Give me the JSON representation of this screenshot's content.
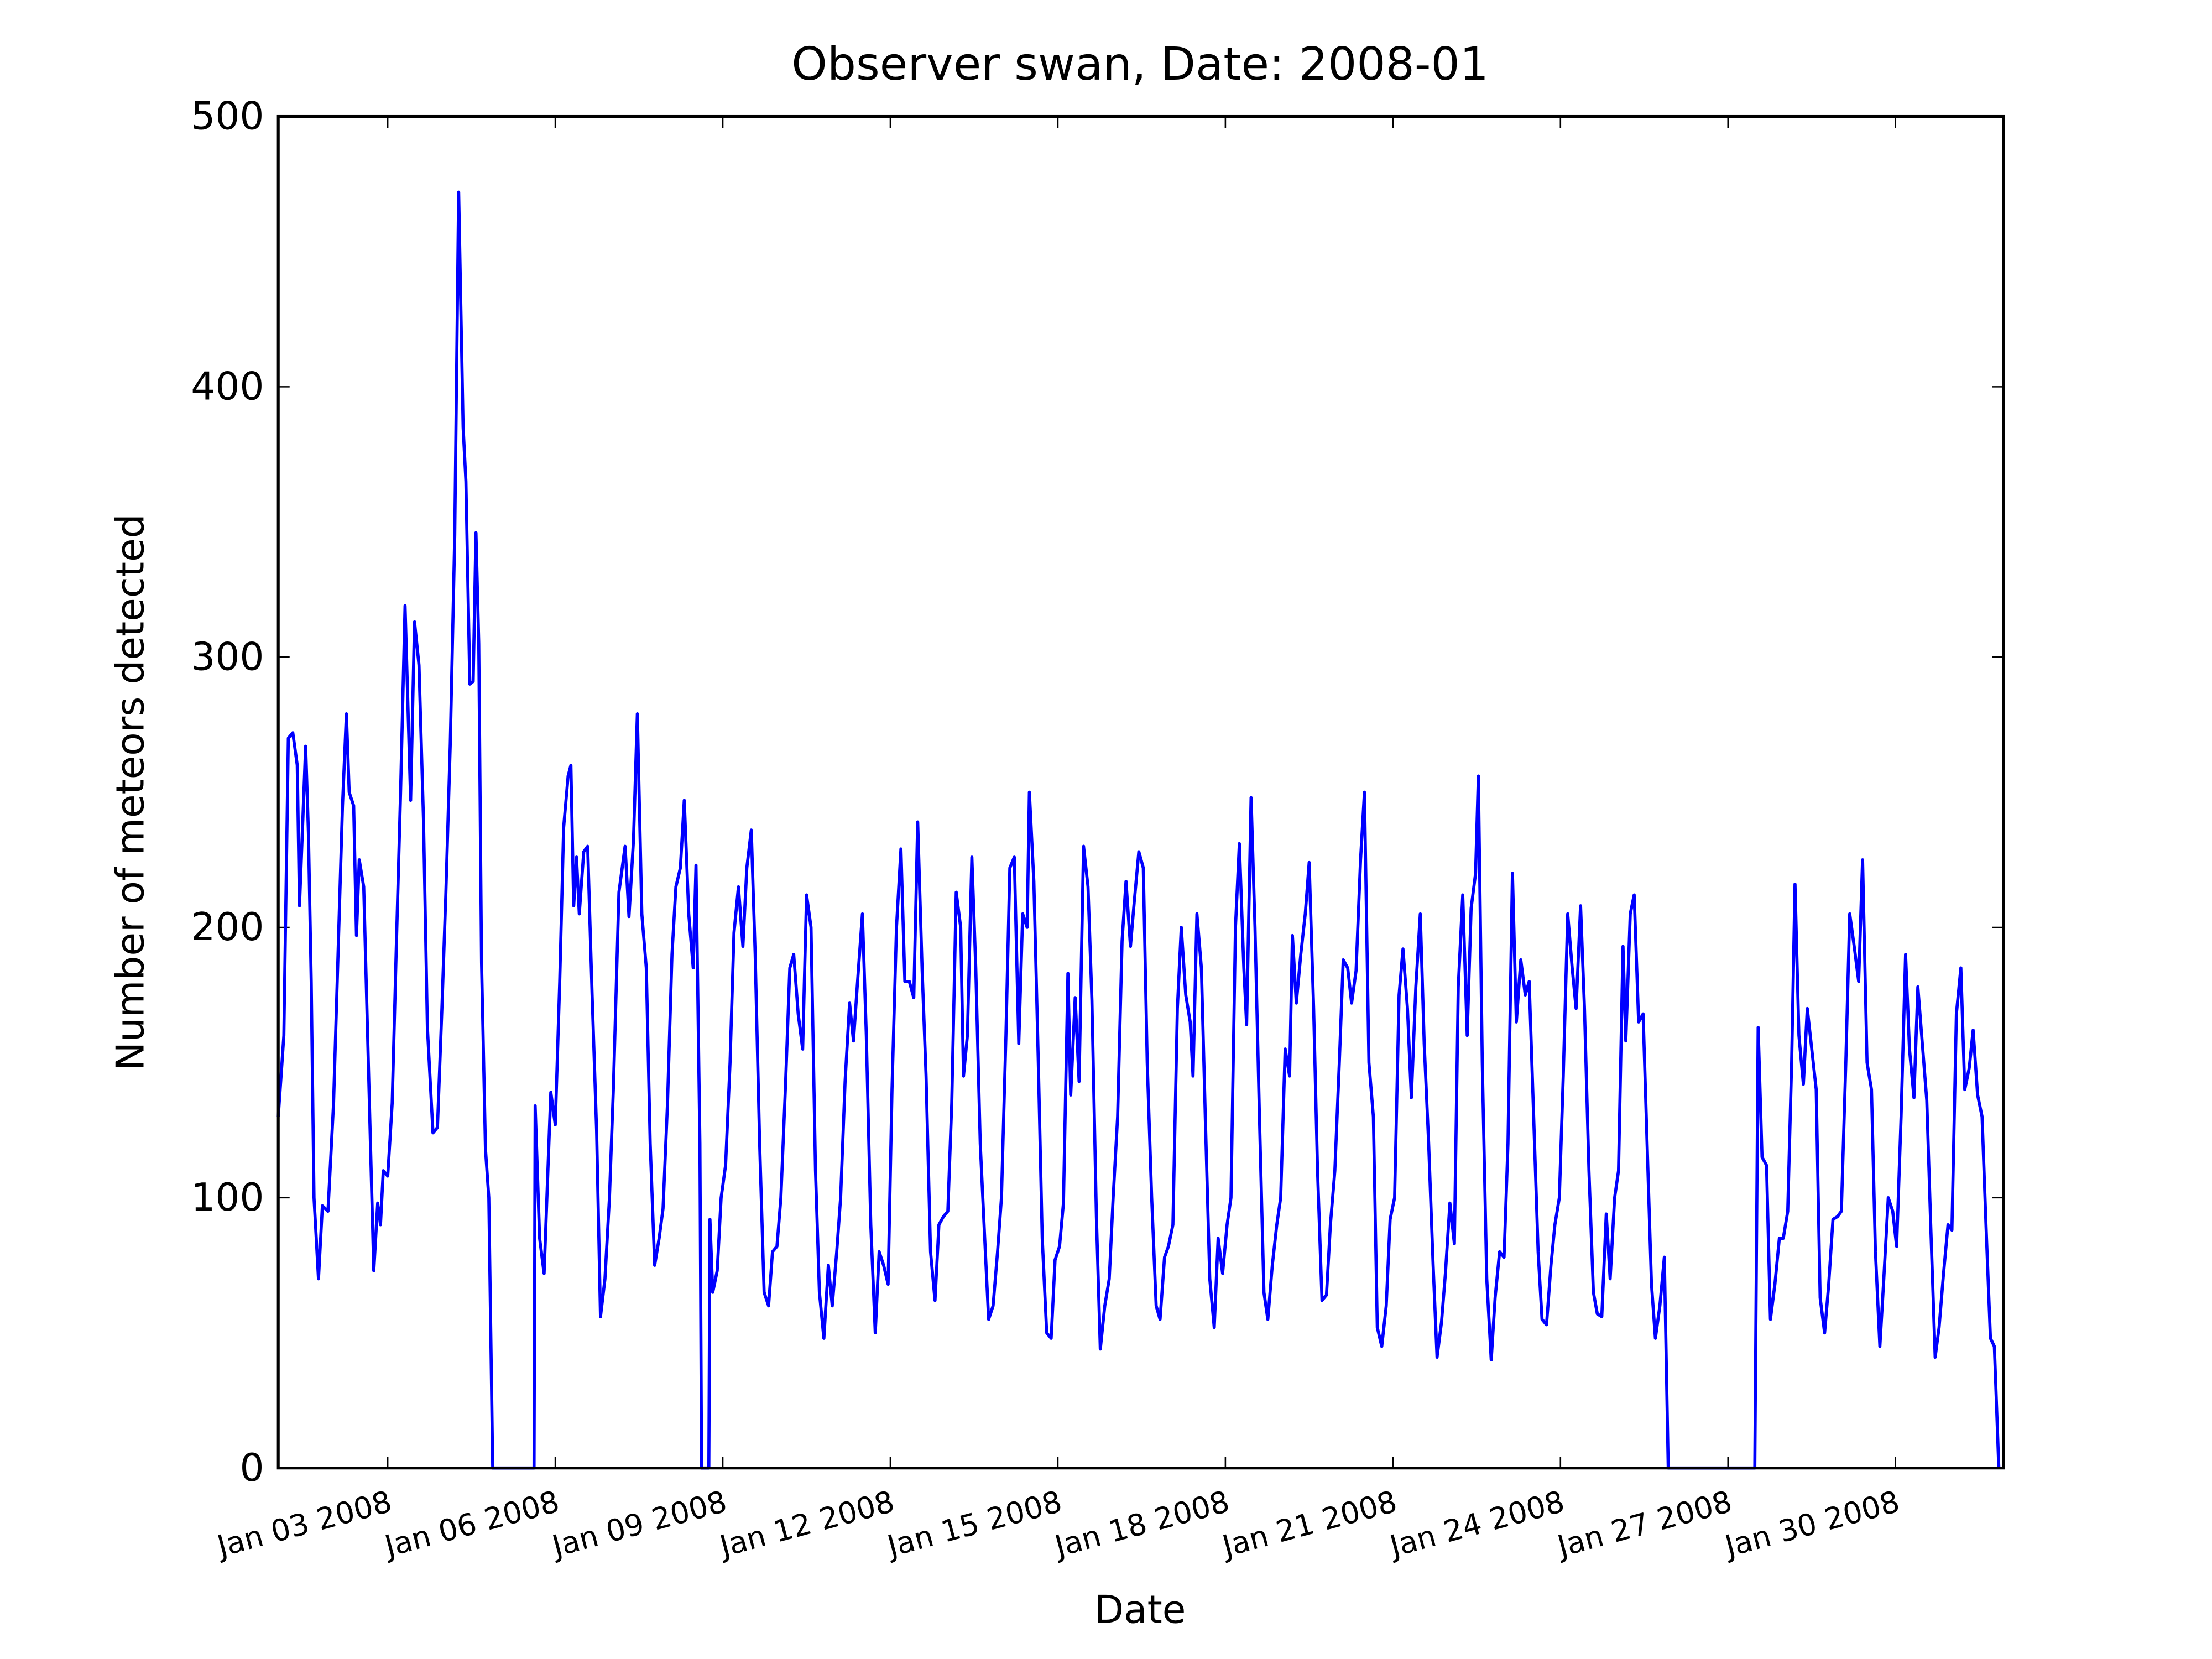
{
  "chart_data": {
    "type": "line",
    "title": "Observer swan, Date: 2008-01",
    "x_label": "Date",
    "y_label": "Number of meteors detected",
    "color": "#0000ff",
    "xlim": [
      1.04,
      31.93
    ],
    "ylim": [
      0,
      500
    ],
    "yticks": [
      0,
      100,
      200,
      300,
      400,
      500
    ],
    "xticks": [
      {
        "value": 3,
        "label": "Jan 03 2008"
      },
      {
        "value": 6,
        "label": "Jan 06 2008"
      },
      {
        "value": 9,
        "label": "Jan 09 2008"
      },
      {
        "value": 12,
        "label": "Jan 12 2008"
      },
      {
        "value": 15,
        "label": "Jan 15 2008"
      },
      {
        "value": 18,
        "label": "Jan 18 2008"
      },
      {
        "value": 21,
        "label": "Jan 21 2008"
      },
      {
        "value": 24,
        "label": "Jan 24 2008"
      },
      {
        "value": 27,
        "label": "Jan 27 2008"
      },
      {
        "value": 30,
        "label": "Jan 30 2008"
      }
    ],
    "x": [
      1.04,
      1.14,
      1.22,
      1.3,
      1.38,
      1.42,
      1.48,
      1.53,
      1.58,
      1.63,
      1.68,
      1.76,
      1.83,
      1.93,
      2.03,
      2.11,
      2.19,
      2.26,
      2.31,
      2.39,
      2.44,
      2.49,
      2.57,
      2.64,
      2.75,
      2.82,
      2.87,
      2.92,
      3.0,
      3.08,
      3.15,
      3.23,
      3.31,
      3.41,
      3.48,
      3.56,
      3.64,
      3.71,
      3.81,
      3.89,
      3.97,
      4.04,
      4.12,
      4.2,
      4.27,
      4.35,
      4.4,
      4.47,
      4.53,
      4.58,
      4.63,
      4.68,
      4.75,
      4.81,
      4.88,
      5.62,
      5.64,
      5.72,
      5.8,
      5.85,
      5.92,
      6.0,
      6.08,
      6.15,
      6.23,
      6.28,
      6.33,
      6.38,
      6.43,
      6.51,
      6.58,
      6.66,
      6.74,
      6.81,
      6.89,
      6.97,
      7.04,
      7.14,
      7.25,
      7.32,
      7.4,
      7.47,
      7.55,
      7.63,
      7.7,
      7.78,
      7.86,
      7.93,
      8.01,
      8.09,
      8.16,
      8.24,
      8.31,
      8.39,
      8.47,
      8.52,
      8.59,
      8.62,
      8.75,
      8.77,
      8.82,
      8.9,
      8.97,
      9.05,
      9.13,
      9.2,
      9.28,
      9.36,
      9.43,
      9.51,
      9.58,
      9.66,
      9.74,
      9.82,
      9.89,
      9.97,
      10.04,
      10.12,
      10.2,
      10.27,
      10.35,
      10.43,
      10.5,
      10.58,
      10.66,
      10.73,
      10.81,
      10.89,
      10.96,
      11.04,
      11.11,
      11.19,
      11.27,
      11.34,
      11.42,
      11.5,
      11.57,
      11.65,
      11.73,
      11.8,
      11.88,
      11.96,
      12.03,
      12.11,
      12.19,
      12.26,
      12.34,
      12.42,
      12.49,
      12.57,
      12.64,
      12.72,
      12.8,
      12.87,
      12.95,
      13.03,
      13.1,
      13.18,
      13.26,
      13.31,
      13.38,
      13.46,
      13.53,
      13.61,
      13.69,
      13.76,
      13.84,
      13.92,
      13.99,
      14.07,
      14.14,
      14.22,
      14.3,
      14.37,
      14.45,
      14.49,
      14.57,
      14.65,
      14.72,
      14.8,
      14.88,
      14.95,
      15.03,
      15.1,
      15.18,
      15.23,
      15.31,
      15.38,
      15.46,
      15.54,
      15.61,
      15.69,
      15.76,
      15.84,
      15.92,
      15.99,
      16.07,
      16.15,
      16.22,
      16.3,
      16.37,
      16.45,
      16.53,
      16.6,
      16.68,
      16.76,
      16.83,
      16.91,
      16.98,
      17.06,
      17.14,
      17.21,
      17.29,
      17.37,
      17.42,
      17.49,
      17.57,
      17.64,
      17.72,
      17.8,
      17.87,
      17.95,
      18.03,
      18.1,
      18.18,
      18.25,
      18.33,
      18.38,
      18.46,
      18.53,
      18.61,
      18.69,
      18.76,
      18.84,
      18.92,
      18.99,
      19.07,
      19.15,
      19.2,
      19.27,
      19.35,
      19.43,
      19.5,
      19.58,
      19.65,
      19.73,
      19.81,
      19.88,
      19.96,
      20.04,
      20.11,
      20.19,
      20.26,
      20.34,
      20.42,
      20.49,
      20.57,
      20.65,
      20.72,
      20.8,
      20.88,
      20.95,
      21.03,
      21.11,
      21.18,
      21.26,
      21.33,
      21.41,
      21.49,
      21.56,
      21.64,
      21.72,
      21.79,
      21.87,
      21.94,
      22.02,
      22.1,
      22.17,
      22.25,
      22.33,
      22.4,
      22.48,
      22.53,
      22.6,
      22.68,
      22.76,
      22.83,
      22.91,
      22.99,
      23.06,
      23.14,
      23.21,
      23.29,
      23.37,
      23.44,
      23.52,
      23.6,
      23.67,
      23.75,
      23.83,
      23.9,
      23.98,
      24.05,
      24.13,
      24.21,
      24.28,
      24.36,
      24.43,
      24.51,
      24.59,
      24.66,
      24.74,
      24.82,
      24.89,
      24.97,
      25.04,
      25.12,
      25.17,
      25.25,
      25.32,
      25.4,
      25.48,
      25.55,
      25.63,
      25.7,
      25.78,
      25.86,
      25.93,
      27.48,
      27.54,
      27.61,
      27.69,
      27.76,
      27.84,
      27.92,
      27.99,
      28.07,
      28.14,
      28.2,
      28.27,
      28.35,
      28.42,
      28.5,
      28.58,
      28.65,
      28.73,
      28.8,
      28.88,
      28.96,
      29.03,
      29.11,
      29.18,
      29.26,
      29.34,
      29.41,
      29.49,
      29.57,
      29.64,
      29.72,
      29.79,
      29.87,
      29.95,
      30.02,
      30.1,
      30.18,
      30.25,
      30.33,
      30.4,
      30.48,
      30.56,
      30.63,
      30.71,
      30.78,
      30.86,
      30.94,
      31.01,
      31.09,
      31.17,
      31.24,
      31.32,
      31.39,
      31.47,
      31.55,
      31.62,
      31.7,
      31.77,
      31.85
    ],
    "values": [
      130,
      160,
      270,
      272,
      260,
      208,
      240,
      267,
      235,
      180,
      100,
      70,
      97,
      95,
      135,
      190,
      245,
      279,
      250,
      245,
      197,
      225,
      215,
      160,
      73,
      98,
      90,
      110,
      108,
      135,
      190,
      250,
      319,
      247,
      313,
      297,
      240,
      163,
      124,
      126,
      170,
      212,
      268,
      345,
      472,
      385,
      365,
      290,
      291,
      346,
      305,
      187,
      118,
      100,
      0,
      0,
      134,
      85,
      72,
      100,
      139,
      127,
      180,
      237,
      256,
      260,
      208,
      226,
      205,
      228,
      230,
      175,
      125,
      56,
      70,
      100,
      140,
      213,
      230,
      204,
      232,
      279,
      205,
      185,
      120,
      75,
      85,
      96,
      135,
      190,
      215,
      222,
      247,
      205,
      185,
      223,
      120,
      0,
      0,
      92,
      65,
      73,
      100,
      112,
      150,
      198,
      215,
      193,
      222,
      236,
      190,
      120,
      65,
      60,
      80,
      82,
      100,
      140,
      185,
      190,
      168,
      155,
      212,
      200,
      110,
      65,
      48,
      75,
      60,
      80,
      100,
      143,
      172,
      158,
      182,
      205,
      160,
      90,
      50,
      80,
      75,
      68,
      140,
      200,
      229,
      180,
      180,
      174,
      239,
      184,
      145,
      80,
      62,
      90,
      93,
      95,
      135,
      213,
      200,
      145,
      160,
      226,
      185,
      120,
      85,
      55,
      60,
      80,
      100,
      160,
      222,
      226,
      157,
      205,
      200,
      250,
      217,
      150,
      85,
      50,
      48,
      77,
      82,
      98,
      183,
      138,
      174,
      143,
      230,
      215,
      173,
      93,
      44,
      60,
      70,
      100,
      130,
      195,
      217,
      193,
      210,
      228,
      222,
      150,
      100,
      60,
      55,
      78,
      82,
      90,
      170,
      200,
      175,
      165,
      145,
      205,
      185,
      130,
      70,
      52,
      85,
      72,
      90,
      100,
      200,
      231,
      185,
      164,
      248,
      200,
      130,
      65,
      55,
      75,
      90,
      100,
      155,
      145,
      197,
      172,
      190,
      205,
      224,
      170,
      110,
      62,
      64,
      90,
      110,
      150,
      188,
      185,
      172,
      184,
      225,
      250,
      150,
      130,
      52,
      45,
      60,
      92,
      100,
      175,
      192,
      170,
      137,
      178,
      205,
      157,
      120,
      75,
      41,
      54,
      72,
      98,
      83,
      178,
      212,
      160,
      207,
      220,
      256,
      150,
      70,
      40,
      63,
      80,
      78,
      120,
      220,
      165,
      188,
      175,
      180,
      130,
      80,
      55,
      53,
      75,
      90,
      100,
      145,
      205,
      185,
      170,
      208,
      170,
      110,
      65,
      57,
      56,
      94,
      70,
      100,
      110,
      193,
      158,
      205,
      212,
      165,
      168,
      121,
      68,
      48,
      60,
      78,
      0,
      0,
      163,
      115,
      112,
      55,
      68,
      85,
      85,
      95,
      150,
      216,
      160,
      142,
      170,
      155,
      140,
      63,
      50,
      67,
      92,
      93,
      95,
      150,
      205,
      193,
      180,
      225,
      150,
      140,
      80,
      45,
      70,
      100,
      95,
      82,
      130,
      190,
      155,
      137,
      178,
      157,
      136,
      90,
      41,
      52,
      72,
      90,
      88,
      168,
      185,
      140,
      148,
      162,
      138,
      130,
      90,
      48,
      45,
      0
    ]
  }
}
